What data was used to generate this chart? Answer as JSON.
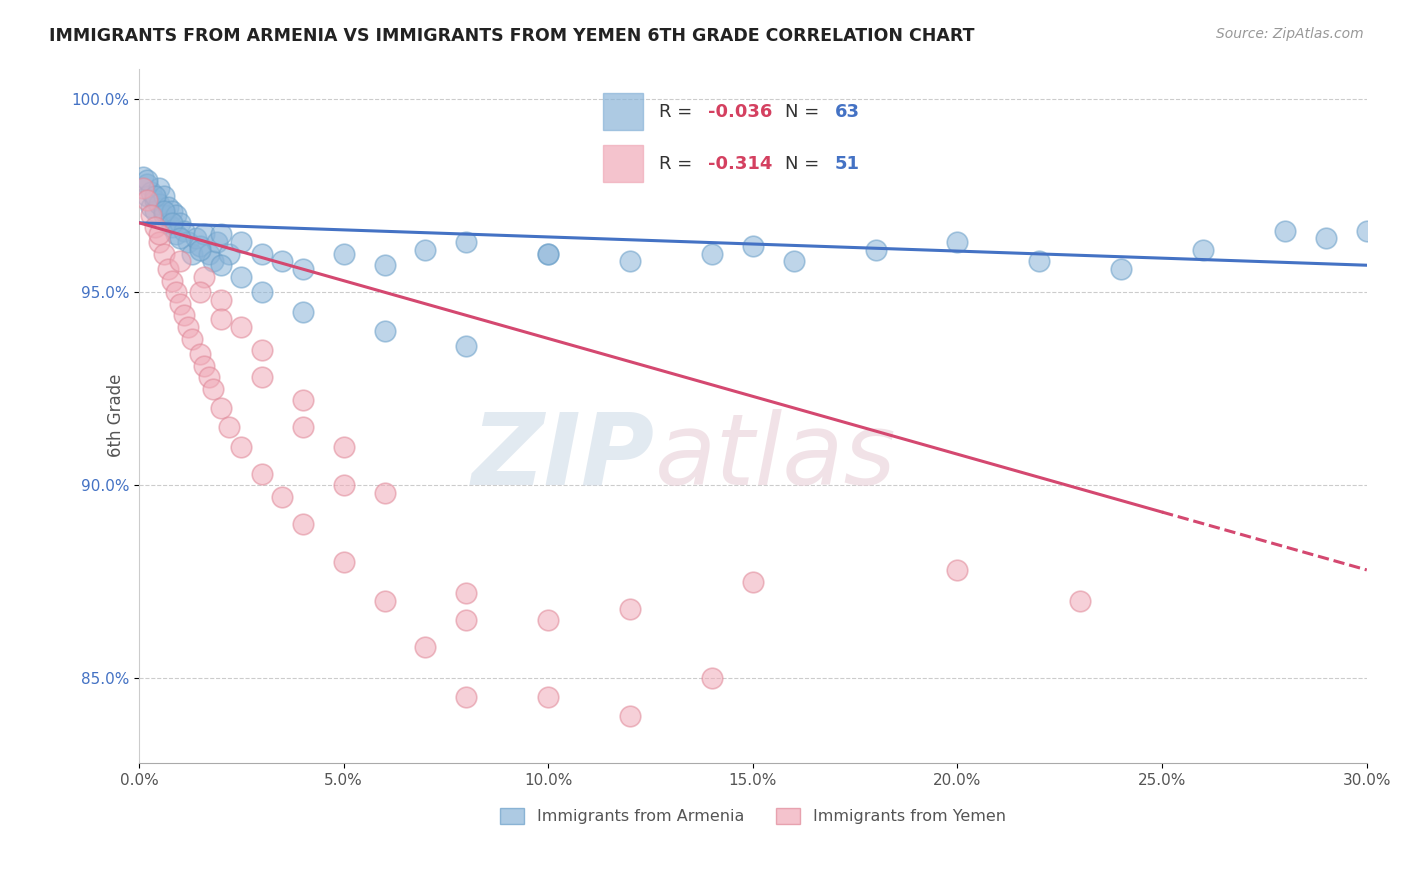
{
  "title": "IMMIGRANTS FROM ARMENIA VS IMMIGRANTS FROM YEMEN 6TH GRADE CORRELATION CHART",
  "source": "Source: ZipAtlas.com",
  "ylabel": "6th Grade",
  "xlim": [
    0.0,
    0.3
  ],
  "ylim": [
    0.828,
    1.008
  ],
  "ytick_vals": [
    0.85,
    0.9,
    0.95,
    1.0
  ],
  "ytick_labels": [
    "85.0%",
    "90.0%",
    "95.0%",
    "100.0%"
  ],
  "xtick_vals": [
    0.0,
    0.05,
    0.1,
    0.15,
    0.2,
    0.25,
    0.3
  ],
  "xtick_labels": [
    "0.0%",
    "5.0%",
    "10.0%",
    "15.0%",
    "20.0%",
    "25.0%",
    "30.0%"
  ],
  "armenia_color": "#8ab4d8",
  "armenia_edge": "#6a9fc8",
  "yemen_color": "#f0aab8",
  "yemen_edge": "#e08898",
  "line_armenia_color": "#4472c4",
  "line_yemen_color": "#d44870",
  "armenia_R": "-0.036",
  "armenia_N": "63",
  "yemen_R": "-0.314",
  "yemen_N": "51",
  "legend_label_armenia": "Immigrants from Armenia",
  "legend_label_yemen": "Immigrants from Yemen",
  "watermark_zip": "ZIP",
  "watermark_atlas": "atlas",
  "armenia_x": [
    0.001,
    0.002,
    0.002,
    0.003,
    0.003,
    0.004,
    0.004,
    0.005,
    0.005,
    0.006,
    0.006,
    0.007,
    0.007,
    0.008,
    0.008,
    0.009,
    0.009,
    0.01,
    0.011,
    0.012,
    0.013,
    0.014,
    0.015,
    0.016,
    0.017,
    0.018,
    0.019,
    0.02,
    0.022,
    0.025,
    0.03,
    0.035,
    0.04,
    0.05,
    0.06,
    0.07,
    0.08,
    0.1,
    0.12,
    0.14,
    0.16,
    0.18,
    0.2,
    0.22,
    0.24,
    0.26,
    0.28,
    0.29,
    0.3,
    0.002,
    0.004,
    0.006,
    0.008,
    0.01,
    0.015,
    0.02,
    0.025,
    0.03,
    0.04,
    0.06,
    0.08,
    0.1,
    0.15
  ],
  "armenia_y": [
    0.98,
    0.978,
    0.975,
    0.976,
    0.972,
    0.974,
    0.971,
    0.977,
    0.973,
    0.975,
    0.97,
    0.972,
    0.968,
    0.971,
    0.967,
    0.97,
    0.965,
    0.968,
    0.966,
    0.963,
    0.96,
    0.964,
    0.962,
    0.965,
    0.96,
    0.958,
    0.963,
    0.965,
    0.96,
    0.963,
    0.96,
    0.958,
    0.956,
    0.96,
    0.957,
    0.961,
    0.963,
    0.96,
    0.958,
    0.96,
    0.958,
    0.961,
    0.963,
    0.958,
    0.956,
    0.961,
    0.966,
    0.964,
    0.966,
    0.979,
    0.975,
    0.971,
    0.968,
    0.964,
    0.961,
    0.957,
    0.954,
    0.95,
    0.945,
    0.94,
    0.936,
    0.96,
    0.962
  ],
  "yemen_x": [
    0.001,
    0.002,
    0.003,
    0.004,
    0.005,
    0.006,
    0.007,
    0.008,
    0.009,
    0.01,
    0.011,
    0.012,
    0.013,
    0.015,
    0.016,
    0.017,
    0.018,
    0.02,
    0.022,
    0.025,
    0.03,
    0.035,
    0.04,
    0.05,
    0.06,
    0.07,
    0.08,
    0.1,
    0.12,
    0.14,
    0.016,
    0.02,
    0.025,
    0.03,
    0.04,
    0.05,
    0.06,
    0.08,
    0.1,
    0.15,
    0.2,
    0.23,
    0.005,
    0.01,
    0.015,
    0.02,
    0.03,
    0.04,
    0.05,
    0.08,
    0.12
  ],
  "yemen_y": [
    0.977,
    0.974,
    0.97,
    0.967,
    0.963,
    0.96,
    0.956,
    0.953,
    0.95,
    0.947,
    0.944,
    0.941,
    0.938,
    0.934,
    0.931,
    0.928,
    0.925,
    0.92,
    0.915,
    0.91,
    0.903,
    0.897,
    0.89,
    0.88,
    0.87,
    0.858,
    0.845,
    0.865,
    0.868,
    0.85,
    0.954,
    0.948,
    0.941,
    0.935,
    0.922,
    0.91,
    0.898,
    0.872,
    0.845,
    0.875,
    0.878,
    0.87,
    0.965,
    0.958,
    0.95,
    0.943,
    0.928,
    0.915,
    0.9,
    0.865,
    0.84
  ],
  "armenia_line_x": [
    0.0,
    0.3
  ],
  "armenia_line_y": [
    0.968,
    0.957
  ],
  "yemen_line_x0": 0.0,
  "yemen_line_x1": 0.25,
  "yemen_line_x2": 0.3,
  "yemen_line_y0": 0.968,
  "yemen_line_y1": 0.893,
  "yemen_line_y2": 0.878
}
